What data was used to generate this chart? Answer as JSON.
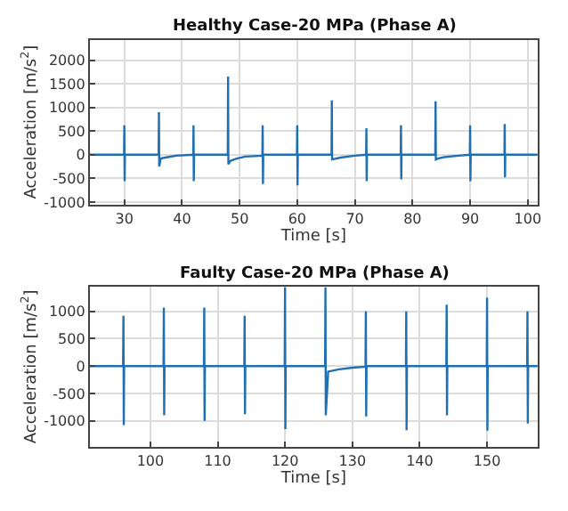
{
  "chart_data": [
    {
      "type": "line",
      "title": "Healthy Case-20 MPa (Phase A)",
      "xlabel": "Time [s]",
      "ylabel": "Acceleration [m/s$^{2}$]",
      "xlim": [
        24,
        101.7
      ],
      "ylim": [
        -1050,
        2430
      ],
      "xticks": [
        30,
        40,
        50,
        60,
        70,
        80,
        90,
        100
      ],
      "yticks": [
        -1000,
        -500,
        0,
        500,
        1000,
        1500,
        2000
      ],
      "grid": true,
      "marker": "none",
      "line_style": "solid",
      "series": [
        {
          "color": "#1f6fb4",
          "x": [
            24,
            29.95,
            30,
            30.05,
            30.1,
            35.95,
            36,
            36.05,
            36.3,
            37.5,
            39,
            41.95,
            42,
            42.05,
            42.1,
            47.95,
            48,
            48.05,
            48.4,
            49.5,
            51,
            53.95,
            54,
            54.05,
            54.1,
            59.95,
            60,
            60.05,
            60.1,
            65.95,
            66,
            66.05,
            66.4,
            67.5,
            70,
            71.95,
            72,
            72.05,
            72.1,
            77.95,
            78,
            78.05,
            78.1,
            83.95,
            84,
            84.05,
            84.4,
            85.5,
            88,
            89.95,
            90,
            90.05,
            90.1,
            95.95,
            96,
            96.05,
            96.1,
            101.7
          ],
          "values": [
            0,
            0,
            620,
            -560,
            0,
            0,
            900,
            -250,
            -80,
            -50,
            -20,
            0,
            620,
            -560,
            0,
            0,
            1650,
            -200,
            -130,
            -80,
            -40,
            -20,
            620,
            -620,
            0,
            0,
            620,
            -650,
            0,
            0,
            1150,
            -100,
            -90,
            -60,
            -20,
            0,
            560,
            -560,
            0,
            0,
            620,
            -520,
            0,
            0,
            1130,
            -100,
            -80,
            -50,
            -20,
            0,
            620,
            -560,
            0,
            0,
            650,
            -480,
            0,
            0
          ]
        }
      ]
    },
    {
      "type": "line",
      "title": "Faulty Case-20 MPa (Phase A)",
      "xlabel": "Time [s]",
      "ylabel": "Acceleration [m/s$^{2}$]",
      "xlim": [
        91,
        157.5
      ],
      "ylim": [
        -1470,
        1450
      ],
      "xticks": [
        100,
        110,
        120,
        130,
        140,
        150
      ],
      "yticks": [
        -1000,
        -500,
        0,
        500,
        1000
      ],
      "grid": true,
      "marker": "none",
      "line_style": "solid",
      "series": [
        {
          "color": "#1f6fb4",
          "x": [
            91,
            95.95,
            96,
            96.05,
            96.1,
            101.95,
            102,
            102.05,
            102.1,
            107.95,
            108,
            108.05,
            108.1,
            113.95,
            114,
            114.05,
            114.1,
            119.95,
            120,
            120.05,
            120.1,
            125.95,
            126,
            126.05,
            126.4,
            128,
            130,
            131.95,
            132,
            132.05,
            132.1,
            137.95,
            138,
            138.05,
            138.1,
            143.95,
            144,
            144.05,
            144.1,
            149.95,
            150,
            150.05,
            150.1,
            155.95,
            156,
            156.05,
            156.1,
            157.5
          ],
          "values": [
            0,
            0,
            920,
            -1080,
            0,
            0,
            1070,
            -900,
            0,
            0,
            1070,
            -1000,
            0,
            0,
            920,
            -880,
            0,
            0,
            1440,
            -1150,
            0,
            0,
            1440,
            -900,
            -100,
            -60,
            -30,
            -10,
            1000,
            -920,
            0,
            0,
            1000,
            -1170,
            0,
            0,
            1120,
            -900,
            0,
            0,
            1250,
            -1180,
            0,
            0,
            1000,
            -1050,
            0,
            0
          ]
        }
      ]
    }
  ]
}
